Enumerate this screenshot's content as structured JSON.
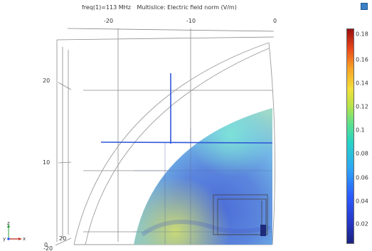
{
  "header": {
    "frequency": "freq(1)=113 MHz",
    "description": "Multislice: Electric field norm (V/m)"
  },
  "axes": {
    "x_ticks": [
      "-20",
      "-10",
      "0"
    ],
    "y_ticks": [
      "20",
      "10",
      "0"
    ],
    "corner_labels": [
      "20",
      "-20"
    ]
  },
  "colorbar": {
    "labels": [
      "0.18",
      "0.16",
      "0.14",
      "0.12",
      "0.1",
      "0.08",
      "0.06",
      "0.04",
      "0.02"
    ],
    "colors": [
      "#1a237e",
      "#2b5cff",
      "#26d3c5",
      "#f3e03a",
      "#e8461a",
      "#9a0f0f"
    ]
  },
  "triad": {
    "y_axis": "y",
    "x_axis": "x",
    "z_axis": "z"
  },
  "icons": {
    "top_right": "camera-icon"
  }
}
